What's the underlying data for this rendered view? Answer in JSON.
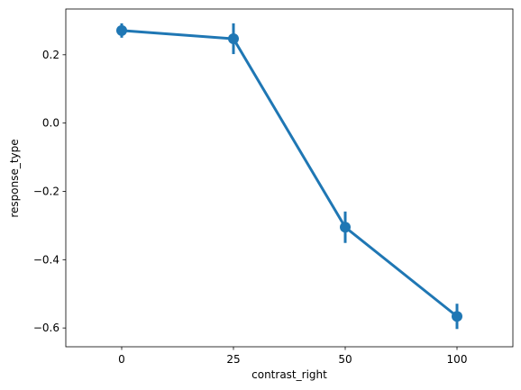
{
  "chart_data": {
    "type": "line",
    "x_label": "contrast_right",
    "y_label": "response_type",
    "categories": [
      "0",
      "25",
      "50",
      "100"
    ],
    "series": [
      {
        "name": "response_type",
        "color": "#1f77b4",
        "values": [
          0.271,
          0.247,
          -0.305,
          -0.566
        ],
        "errors": [
          0.021,
          0.045,
          0.046,
          0.037
        ]
      }
    ],
    "ylim": [
      -0.655,
      0.334
    ],
    "yticks": [
      {
        "value": 0.2,
        "label": "0.2"
      },
      {
        "value": 0.0,
        "label": "0.0"
      },
      {
        "value": -0.2,
        "label": "−0.2"
      },
      {
        "value": -0.4,
        "label": "−0.4"
      },
      {
        "value": -0.6,
        "label": "−0.6"
      }
    ],
    "grid": false
  }
}
